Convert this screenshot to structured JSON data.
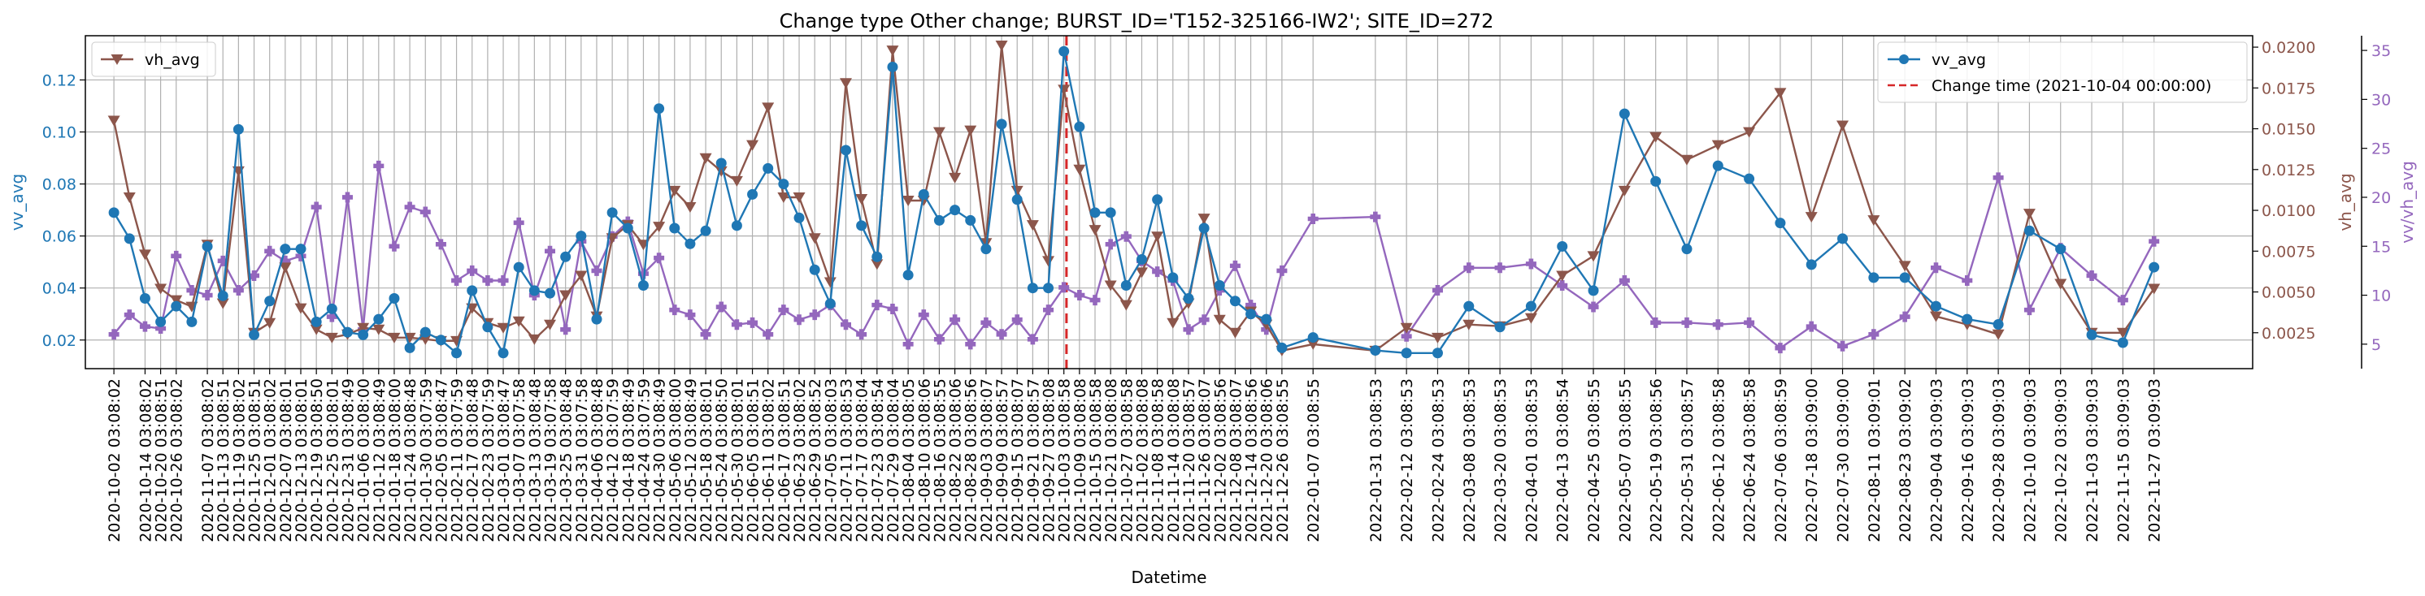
{
  "chart_data": {
    "type": "line",
    "title": "Change type Other change; BURST_ID='T152-325166-IW2'; SITE_ID=272",
    "xlabel": "Datetime",
    "colors": {
      "vv": "#1f77b4",
      "vh": "#8c564b",
      "ratio": "#9467bd",
      "change": "#d62728"
    },
    "axes": [
      {
        "name": "left",
        "label": "vv_avg",
        "ylim": [
          0.009,
          0.137
        ],
        "ticks": [
          "0.02",
          "0.04",
          "0.06",
          "0.08",
          "0.10",
          "0.12"
        ],
        "tick_values": [
          0.02,
          0.04,
          0.06,
          0.08,
          0.1,
          0.12
        ]
      },
      {
        "name": "right1",
        "label": "vh_avg",
        "ylim": [
          0.0003,
          0.0207
        ],
        "ticks": [
          "0.0025",
          "0.0050",
          "0.0075",
          "0.0100",
          "0.0125",
          "0.0150",
          "0.0175",
          "0.0200"
        ],
        "tick_values": [
          0.0025,
          0.005,
          0.0075,
          0.01,
          0.0125,
          0.015,
          0.0175,
          0.02
        ]
      },
      {
        "name": "right2",
        "label": "vv/vh_avg",
        "ylim": [
          2.5,
          36.5
        ],
        "ticks": [
          "5",
          "10",
          "15",
          "20",
          "25",
          "30",
          "35"
        ],
        "tick_values": [
          5,
          10,
          15,
          20,
          25,
          30,
          35
        ]
      }
    ],
    "x_range": [
      "2020-09-21",
      "2023-01-04"
    ],
    "x_tick_labels": [
      "2020-10-02 03:08:02",
      "2020-10-14 03:08:02",
      "2020-10-20 03:08:51",
      "2020-10-26 03:08:02",
      "2020-11-07 03:08:02",
      "2020-11-13 03:08:51",
      "2020-11-19 03:08:02",
      "2020-11-25 03:08:51",
      "2020-12-01 03:08:02",
      "2020-12-07 03:08:01",
      "2020-12-13 03:08:01",
      "2020-12-19 03:08:50",
      "2020-12-25 03:08:01",
      "2020-12-31 03:08:49",
      "2021-01-06 03:08:00",
      "2021-01-12 03:08:49",
      "2021-01-18 03:08:00",
      "2021-01-24 03:08:48",
      "2021-01-30 03:07:59",
      "2021-02-05 03:08:47",
      "2021-02-11 03:07:59",
      "2021-02-17 03:08:48",
      "2021-02-23 03:07:59",
      "2021-03-01 03:08:47",
      "2021-03-07 03:07:58",
      "2021-03-13 03:08:48",
      "2021-03-19 03:07:58",
      "2021-03-25 03:08:48",
      "2021-03-31 03:07:58",
      "2021-04-06 03:08:48",
      "2021-04-12 03:07:59",
      "2021-04-18 03:08:49",
      "2021-04-24 03:07:59",
      "2021-04-30 03:08:49",
      "2021-05-06 03:08:00",
      "2021-05-12 03:08:49",
      "2021-05-18 03:08:01",
      "2021-05-24 03:08:50",
      "2021-05-30 03:08:01",
      "2021-06-05 03:08:51",
      "2021-06-11 03:08:02",
      "2021-06-17 03:08:51",
      "2021-06-23 03:08:02",
      "2021-06-29 03:08:52",
      "2021-07-05 03:08:03",
      "2021-07-11 03:08:53",
      "2021-07-17 03:08:04",
      "2021-07-23 03:08:54",
      "2021-07-29 03:08:04",
      "2021-08-04 03:08:05",
      "2021-08-10 03:08:06",
      "2021-08-16 03:08:55",
      "2021-08-22 03:08:06",
      "2021-08-28 03:08:56",
      "2021-09-03 03:08:07",
      "2021-09-09 03:08:57",
      "2021-09-15 03:08:07",
      "2021-09-21 03:08:57",
      "2021-09-27 03:08:08",
      "2021-10-03 03:08:58",
      "2021-10-09 03:08:08",
      "2021-10-15 03:08:58",
      "2021-10-21 03:08:08",
      "2021-10-27 03:08:58",
      "2021-11-02 03:08:08",
      "2021-11-08 03:08:58",
      "2021-11-14 03:08:08",
      "2021-11-20 03:08:57",
      "2021-11-26 03:08:07",
      "2021-12-02 03:08:56",
      "2021-12-08 03:08:07",
      "2021-12-14 03:08:56",
      "2021-12-20 03:08:06",
      "2021-12-26 03:08:55",
      "2022-01-07 03:08:55",
      "2022-01-31 03:08:53",
      "2022-02-12 03:08:53",
      "2022-02-24 03:08:53",
      "2022-03-08 03:08:53",
      "2022-03-20 03:08:53",
      "2022-04-01 03:08:53",
      "2022-04-13 03:08:54",
      "2022-04-25 03:08:55",
      "2022-05-07 03:08:55",
      "2022-05-19 03:08:56",
      "2022-05-31 03:08:57",
      "2022-06-12 03:08:58",
      "2022-06-24 03:08:58",
      "2022-07-06 03:08:59",
      "2022-07-18 03:09:00",
      "2022-07-30 03:09:00",
      "2022-08-11 03:09:01",
      "2022-08-23 03:09:02",
      "2022-09-04 03:09:03",
      "2022-09-16 03:09:03",
      "2022-09-28 03:09:03",
      "2022-10-10 03:09:03",
      "2022-10-22 03:09:03",
      "2022-11-03 03:09:03",
      "2022-11-15 03:09:03",
      "2022-11-27 03:09:03"
    ],
    "change_time": "2021-10-04",
    "legend_left": {
      "placement": "top-left",
      "entries": [
        "vh_avg"
      ]
    },
    "legend_right": {
      "placement": "top-right",
      "entries": [
        "vv_avg",
        "Change time (2021-10-04 00:00:00)"
      ]
    },
    "series": [
      {
        "name": "vv_avg",
        "axis": "left",
        "marker": "circle",
        "x": [
          "2020-10-02",
          "2020-10-08",
          "2020-10-14",
          "2020-10-20",
          "2020-10-26",
          "2020-11-01",
          "2020-11-07",
          "2020-11-13",
          "2020-11-19",
          "2020-11-25",
          "2020-12-01",
          "2020-12-07",
          "2020-12-13",
          "2020-12-19",
          "2020-12-25",
          "2020-12-31",
          "2021-01-06",
          "2021-01-12",
          "2021-01-18",
          "2021-01-24",
          "2021-01-30",
          "2021-02-05",
          "2021-02-11",
          "2021-02-17",
          "2021-02-23",
          "2021-03-01",
          "2021-03-07",
          "2021-03-13",
          "2021-03-19",
          "2021-03-25",
          "2021-03-31",
          "2021-04-06",
          "2021-04-12",
          "2021-04-18",
          "2021-04-24",
          "2021-04-30",
          "2021-05-06",
          "2021-05-12",
          "2021-05-18",
          "2021-05-24",
          "2021-05-30",
          "2021-06-05",
          "2021-06-11",
          "2021-06-17",
          "2021-06-23",
          "2021-06-29",
          "2021-07-05",
          "2021-07-11",
          "2021-07-17",
          "2021-07-23",
          "2021-07-29",
          "2021-08-04",
          "2021-08-10",
          "2021-08-16",
          "2021-08-22",
          "2021-08-28",
          "2021-09-03",
          "2021-09-09",
          "2021-09-15",
          "2021-09-21",
          "2021-09-27",
          "2021-10-03",
          "2021-10-09",
          "2021-10-15",
          "2021-10-21",
          "2021-10-27",
          "2021-11-02",
          "2021-11-08",
          "2021-11-14",
          "2021-11-20",
          "2021-11-26",
          "2021-12-02",
          "2021-12-08",
          "2021-12-14",
          "2021-12-20",
          "2021-12-26",
          "2022-01-07",
          "2022-01-31",
          "2022-02-12",
          "2022-02-24",
          "2022-03-08",
          "2022-03-20",
          "2022-04-01",
          "2022-04-13",
          "2022-04-25",
          "2022-05-07",
          "2022-05-19",
          "2022-05-31",
          "2022-06-12",
          "2022-06-24",
          "2022-07-06",
          "2022-07-18",
          "2022-07-30",
          "2022-08-11",
          "2022-08-23",
          "2022-09-04",
          "2022-09-16",
          "2022-09-28",
          "2022-10-10",
          "2022-10-22",
          "2022-11-03",
          "2022-11-15",
          "2022-11-27"
        ],
        "values": [
          0.069,
          0.059,
          0.036,
          0.027,
          0.033,
          0.027,
          0.056,
          0.037,
          0.101,
          0.022,
          0.035,
          0.055,
          0.055,
          0.027,
          0.032,
          0.023,
          0.022,
          0.028,
          0.036,
          0.017,
          0.023,
          0.02,
          0.015,
          0.039,
          0.025,
          0.015,
          0.048,
          0.039,
          0.038,
          0.052,
          0.06,
          0.028,
          0.069,
          0.063,
          0.041,
          0.109,
          0.063,
          0.057,
          0.062,
          0.088,
          0.064,
          0.076,
          0.086,
          0.08,
          0.067,
          0.047,
          0.034,
          0.093,
          0.064,
          0.052,
          0.125,
          0.045,
          0.076,
          0.066,
          0.07,
          0.066,
          0.055,
          0.103,
          0.074,
          0.04,
          0.04,
          0.131,
          0.102,
          0.069,
          0.069,
          0.041,
          0.051,
          0.074,
          0.044,
          0.036,
          0.063,
          0.041,
          0.035,
          0.03,
          0.028,
          0.017,
          0.021,
          0.016,
          0.015,
          0.015,
          0.033,
          0.025,
          0.033,
          0.056,
          0.039,
          0.107,
          0.081,
          0.055,
          0.087,
          0.082,
          0.065,
          0.049,
          0.059,
          0.044,
          0.044,
          0.033,
          0.028,
          0.026,
          0.062,
          0.055,
          0.022,
          0.019,
          0.048
        ]
      },
      {
        "name": "vh_avg",
        "axis": "right1",
        "marker": "triangle_down",
        "x": [
          "2020-10-02",
          "2020-10-08",
          "2020-10-14",
          "2020-10-20",
          "2020-10-26",
          "2020-11-01",
          "2020-11-07",
          "2020-11-13",
          "2020-11-19",
          "2020-11-25",
          "2020-12-01",
          "2020-12-07",
          "2020-12-13",
          "2020-12-19",
          "2020-12-25",
          "2020-12-31",
          "2021-01-06",
          "2021-01-12",
          "2021-01-18",
          "2021-01-24",
          "2021-01-30",
          "2021-02-05",
          "2021-02-11",
          "2021-02-17",
          "2021-02-23",
          "2021-03-01",
          "2021-03-07",
          "2021-03-13",
          "2021-03-19",
          "2021-03-25",
          "2021-03-31",
          "2021-04-06",
          "2021-04-12",
          "2021-04-18",
          "2021-04-24",
          "2021-04-30",
          "2021-05-06",
          "2021-05-12",
          "2021-05-18",
          "2021-05-24",
          "2021-05-30",
          "2021-06-05",
          "2021-06-11",
          "2021-06-17",
          "2021-06-23",
          "2021-06-29",
          "2021-07-05",
          "2021-07-11",
          "2021-07-17",
          "2021-07-23",
          "2021-07-29",
          "2021-08-04",
          "2021-08-10",
          "2021-08-16",
          "2021-08-22",
          "2021-08-28",
          "2021-09-03",
          "2021-09-09",
          "2021-09-15",
          "2021-09-21",
          "2021-09-27",
          "2021-10-03",
          "2021-10-09",
          "2021-10-15",
          "2021-10-21",
          "2021-10-27",
          "2021-11-02",
          "2021-11-08",
          "2021-11-14",
          "2021-11-20",
          "2021-11-26",
          "2021-12-02",
          "2021-12-08",
          "2021-12-14",
          "2021-12-20",
          "2021-12-26",
          "2022-01-07",
          "2022-01-31",
          "2022-02-12",
          "2022-02-24",
          "2022-03-08",
          "2022-03-20",
          "2022-04-01",
          "2022-04-13",
          "2022-04-25",
          "2022-05-07",
          "2022-05-19",
          "2022-05-31",
          "2022-06-12",
          "2022-06-24",
          "2022-07-06",
          "2022-07-18",
          "2022-07-30",
          "2022-08-11",
          "2022-08-23",
          "2022-09-04",
          "2022-09-16",
          "2022-09-28",
          "2022-10-10",
          "2022-10-22",
          "2022-11-03",
          "2022-11-15",
          "2022-11-27"
        ],
        "values": [
          0.0155,
          0.0108,
          0.0073,
          0.0052,
          0.0045,
          0.0041,
          0.0079,
          0.0043,
          0.0124,
          0.0025,
          0.0031,
          0.0065,
          0.004,
          0.0027,
          0.0022,
          0.0024,
          0.0028,
          0.0027,
          0.0022,
          0.0022,
          0.0021,
          0.002,
          0.002,
          0.004,
          0.0031,
          0.0028,
          0.0032,
          0.0021,
          0.003,
          0.0048,
          0.006,
          0.0035,
          0.0083,
          0.0091,
          0.0079,
          0.009,
          0.0112,
          0.0102,
          0.0132,
          0.0124,
          0.0118,
          0.014,
          0.0163,
          0.0108,
          0.0108,
          0.0083,
          0.0056,
          0.0178,
          0.0107,
          0.0067,
          0.0198,
          0.0106,
          0.0106,
          0.0148,
          0.012,
          0.0149,
          0.008,
          0.0201,
          0.0112,
          0.0091,
          0.0069,
          0.0174,
          0.0125,
          0.0088,
          0.0054,
          0.0042,
          0.0062,
          0.0084,
          0.0031,
          0.0043,
          0.0095,
          0.0033,
          0.0025,
          0.0038,
          0.003,
          0.0014,
          0.0018,
          0.0014,
          0.0028,
          0.0022,
          0.003,
          0.0029,
          0.0034,
          0.006,
          0.0072,
          0.0112,
          0.0145,
          0.0131,
          0.014,
          0.0148,
          0.0172,
          0.0096,
          0.0152,
          0.0094,
          0.0066,
          0.0035,
          0.003,
          0.0024,
          0.0098,
          0.0055,
          0.0025,
          0.0025,
          0.0052
        ]
      },
      {
        "name": "vv/vh_avg",
        "axis": "right2",
        "marker": "plus",
        "x": [
          "2020-10-02",
          "2020-10-08",
          "2020-10-14",
          "2020-10-20",
          "2020-10-26",
          "2020-11-01",
          "2020-11-07",
          "2020-11-13",
          "2020-11-19",
          "2020-11-25",
          "2020-12-01",
          "2020-12-07",
          "2020-12-13",
          "2020-12-19",
          "2020-12-25",
          "2020-12-31",
          "2021-01-06",
          "2021-01-12",
          "2021-01-18",
          "2021-01-24",
          "2021-01-30",
          "2021-02-05",
          "2021-02-11",
          "2021-02-17",
          "2021-02-23",
          "2021-03-01",
          "2021-03-07",
          "2021-03-13",
          "2021-03-19",
          "2021-03-25",
          "2021-03-31",
          "2021-04-06",
          "2021-04-12",
          "2021-04-18",
          "2021-04-24",
          "2021-04-30",
          "2021-05-06",
          "2021-05-12",
          "2021-05-18",
          "2021-05-24",
          "2021-05-30",
          "2021-06-05",
          "2021-06-11",
          "2021-06-17",
          "2021-06-23",
          "2021-06-29",
          "2021-07-05",
          "2021-07-11",
          "2021-07-17",
          "2021-07-23",
          "2021-07-29",
          "2021-08-04",
          "2021-08-10",
          "2021-08-16",
          "2021-08-22",
          "2021-08-28",
          "2021-09-03",
          "2021-09-09",
          "2021-09-15",
          "2021-09-21",
          "2021-09-27",
          "2021-10-03",
          "2021-10-09",
          "2021-10-15",
          "2021-10-21",
          "2021-10-27",
          "2021-11-02",
          "2021-11-08",
          "2021-11-14",
          "2021-11-20",
          "2021-11-26",
          "2021-12-02",
          "2021-12-08",
          "2021-12-14",
          "2021-12-20",
          "2021-12-26",
          "2022-01-07",
          "2022-01-31",
          "2022-02-12",
          "2022-02-24",
          "2022-03-08",
          "2022-03-20",
          "2022-04-01",
          "2022-04-13",
          "2022-04-25",
          "2022-05-07",
          "2022-05-19",
          "2022-05-31",
          "2022-06-12",
          "2022-06-24",
          "2022-07-06",
          "2022-07-18",
          "2022-07-30",
          "2022-08-11",
          "2022-08-23",
          "2022-09-04",
          "2022-09-16",
          "2022-09-28",
          "2022-10-10",
          "2022-10-22",
          "2022-11-03",
          "2022-11-15",
          "2022-11-27"
        ],
        "values": [
          6.0,
          8.0,
          6.8,
          6.6,
          14.0,
          10.5,
          10.0,
          13.5,
          10.5,
          12.0,
          14.5,
          13.5,
          14.0,
          19.0,
          7.8,
          20.0,
          6.5,
          23.2,
          15.0,
          19.0,
          18.5,
          15.2,
          11.5,
          12.5,
          11.5,
          11.5,
          17.4,
          10.0,
          14.5,
          6.5,
          15.5,
          12.5,
          16.0,
          17.5,
          12.2,
          13.8,
          8.5,
          8.0,
          6.0,
          8.8,
          7.0,
          7.2,
          6.0,
          8.5,
          7.5,
          8.0,
          9.0,
          7.0,
          6.0,
          9.0,
          8.6,
          5.0,
          8.0,
          5.5,
          7.5,
          5.0,
          7.2,
          6.0,
          7.5,
          5.5,
          8.5,
          10.8,
          10.0,
          9.5,
          15.2,
          16.0,
          13.5,
          12.4,
          11.5,
          6.5,
          7.5,
          10.5,
          13.0,
          9.0,
          6.5,
          12.5,
          17.8,
          18.0,
          5.8,
          10.5,
          12.8,
          12.8,
          13.2,
          11.0,
          8.8,
          11.5,
          7.2,
          7.2,
          7.0,
          7.2,
          4.6,
          6.8,
          4.8,
          6.0,
          7.8,
          12.8,
          11.5,
          22.0,
          8.5,
          14.8,
          12.0,
          9.5,
          15.5
        ]
      }
    ]
  }
}
